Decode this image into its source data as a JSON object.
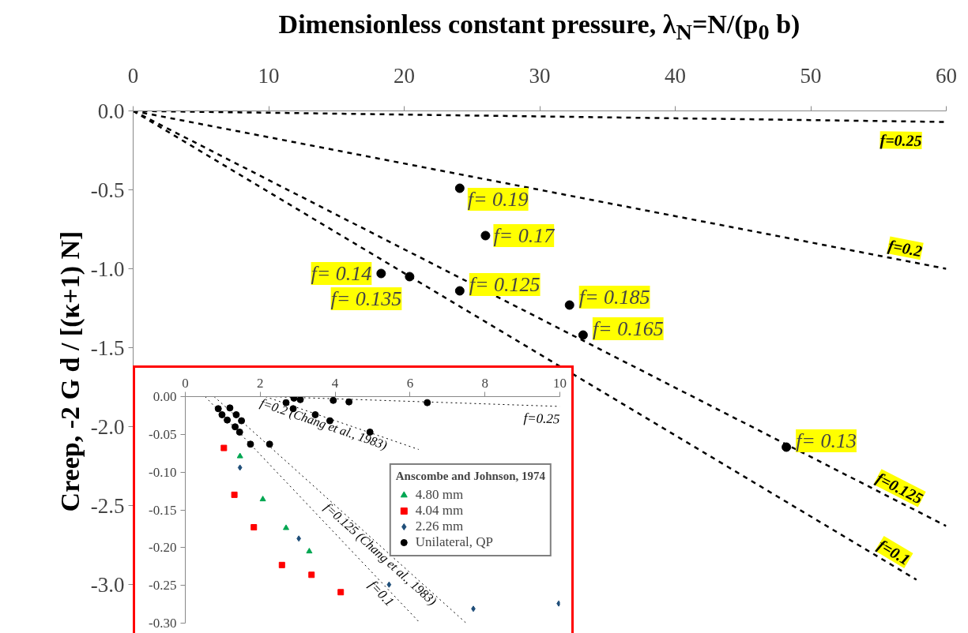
{
  "chart_data": [
    {
      "type": "line",
      "xlabel": "Dimensionless constant pressure, λ$_{N}$=N/(p$_{0}$ b)",
      "ylabel": "Creep, -2 G d / [(κ+1) N]",
      "xlim": [
        0,
        60
      ],
      "xticks": [
        0,
        10,
        20,
        30,
        40,
        50,
        60
      ],
      "ylim": [
        -3.3,
        0
      ],
      "yticks": [
        {
          "value": 0,
          "label": "0.0"
        },
        {
          "value": -0.5,
          "label": "-0.5"
        },
        {
          "value": -1,
          "label": "-1.0"
        },
        {
          "value": -1.5,
          "label": "-1.5"
        },
        {
          "value": -2,
          "label": "-2.0"
        },
        {
          "value": -2.5,
          "label": "-2.5"
        },
        {
          "value": -3,
          "label": "-3.0"
        }
      ],
      "grid": false,
      "legend": false,
      "line_style": "dashed",
      "series": [
        {
          "name": "f=0.25",
          "color": "#000000",
          "x": [
            0,
            60
          ],
          "values": [
            0,
            -0.07
          ]
        },
        {
          "name": "f=0.2",
          "color": "#000000",
          "x": [
            0,
            60
          ],
          "values": [
            0,
            -1.0
          ]
        },
        {
          "name": "f=0.125",
          "color": "#000000",
          "x": [
            0,
            60
          ],
          "values": [
            0,
            -2.63
          ]
        },
        {
          "name": "f=0.1",
          "color": "#000000",
          "x": [
            0,
            57.8
          ],
          "values": [
            0,
            -2.97
          ]
        },
        {
          "type": "scatter",
          "marker": "circle",
          "color": "#000000",
          "x": [
            24.1,
            26.0,
            18.3,
            20.4,
            24.1,
            32.2,
            33.2,
            48.2
          ],
          "values": [
            -0.49,
            -0.79,
            -1.03,
            -1.05,
            -1.14,
            -1.23,
            -1.42,
            -2.13
          ]
        }
      ],
      "annotations": [
        {
          "text": "f= 0.19",
          "x": 24.1,
          "y": -0.49
        },
        {
          "text": "f= 0.17",
          "x": 26.0,
          "y": -0.79
        },
        {
          "text": "f= 0.14",
          "x": 18.3,
          "y": -1.03
        },
        {
          "text": "f= 0.135",
          "x": 20.4,
          "y": -1.05
        },
        {
          "text": "f= 0.125",
          "x": 24.1,
          "y": -1.14
        },
        {
          "text": "f= 0.185",
          "x": 32.2,
          "y": -1.23
        },
        {
          "text": "f= 0.165",
          "x": 33.2,
          "y": -1.42
        },
        {
          "text": "f= 0.13",
          "x": 48.2,
          "y": -2.13
        }
      ]
    },
    {
      "type": "line",
      "xlim": [
        0,
        10
      ],
      "xticks": [
        0,
        2,
        4,
        6,
        8,
        10
      ],
      "ylim": [
        -0.3,
        0
      ],
      "yticks": [
        {
          "value": 0,
          "label": "0.00"
        },
        {
          "value": -0.05,
          "label": "-0.05"
        },
        {
          "value": -0.1,
          "label": "-0.10"
        },
        {
          "value": -0.15,
          "label": "-0.15"
        },
        {
          "value": -0.2,
          "label": "-0.20"
        },
        {
          "value": -0.25,
          "label": "-0.25"
        },
        {
          "value": -0.3,
          "label": "-0.30"
        }
      ],
      "grid": false,
      "legend": "right",
      "legend_title": "Anscombe and Johnson, 1974",
      "line_style": "dotted",
      "series": [
        {
          "name": "f=0.25",
          "color": "#000000",
          "x": [
            2.28,
            10.0
          ],
          "values": [
            0,
            -0.013
          ]
        },
        {
          "name": "f=0.2 (Chang et al., 1983)",
          "color": "#000000",
          "x": [
            2.14,
            6.23
          ],
          "values": [
            0,
            -0.07
          ]
        },
        {
          "name": "f=0.125 (Chang et al., 1983)",
          "color": "#000000",
          "x": [
            0.77,
            7.5
          ],
          "values": [
            0,
            -0.3
          ]
        },
        {
          "name": "f=0.1",
          "color": "#000000",
          "x": [
            0.53,
            6.27
          ],
          "values": [
            0,
            -0.3
          ]
        },
        {
          "name": "4.80 mm",
          "type": "scatter",
          "marker": "triangle",
          "color": "#00a651",
          "x": [
            1.46,
            2.07,
            2.69,
            3.31
          ],
          "values": [
            -0.079,
            -0.136,
            -0.174,
            -0.205
          ]
        },
        {
          "name": "4.04 mm",
          "type": "scatter",
          "marker": "square",
          "color": "#ff0000",
          "x": [
            1.03,
            1.31,
            1.83,
            2.58,
            3.37,
            4.15
          ],
          "values": [
            -0.068,
            -0.13,
            -0.173,
            -0.223,
            -0.236,
            -0.259
          ]
        },
        {
          "name": "2.26 mm",
          "type": "scatter",
          "marker": "diamond",
          "color": "#1f4e79",
          "x": [
            1.46,
            3.03,
            5.44,
            7.69,
            9.97
          ],
          "values": [
            -0.094,
            -0.188,
            -0.249,
            -0.281,
            -0.274
          ]
        },
        {
          "name": "Unilateral, QP",
          "type": "scatter",
          "marker": "circle",
          "color": "#000000",
          "x": [
            2.9,
            3.07,
            3.95,
            4.37,
            6.46,
            2.69,
            2.88,
            3.47,
            3.86,
            4.93,
            1.19,
            1.36,
            1.5,
            2.25,
            0.88,
            0.98,
            1.12,
            1.33,
            1.45,
            1.74
          ],
          "values": [
            -0.002,
            -0.004,
            -0.005,
            -0.007,
            -0.008,
            -0.008,
            -0.016,
            -0.024,
            -0.032,
            -0.047,
            -0.015,
            -0.024,
            -0.032,
            -0.063,
            -0.016,
            -0.024,
            -0.031,
            -0.04,
            -0.047,
            -0.063
          ]
        }
      ]
    }
  ]
}
